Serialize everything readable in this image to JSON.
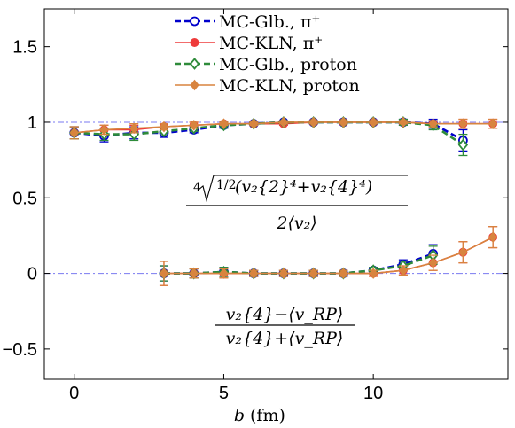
{
  "chart_data": {
    "type": "line",
    "xlabel": "b (fm)",
    "xlabel_var": "b",
    "xlabel_unit": "(fm)",
    "xlim": [
      -1,
      14.5
    ],
    "ylim": [
      -0.7,
      1.75
    ],
    "xticks": [
      0,
      5,
      10
    ],
    "yticks": [
      -0.5,
      0,
      0.5,
      1,
      1.5
    ],
    "xtick_labels": [
      "0",
      "5",
      "10"
    ],
    "ytick_labels": [
      "−0.5",
      "0",
      "0.5",
      "1",
      "1.5"
    ],
    "reference_lines": [
      1,
      0
    ],
    "legend": {
      "placement": "top-center",
      "entries": [
        {
          "label": "MC-Glb., π⁺",
          "color": "#0000cc",
          "marker": "circle-open",
          "dash": "dashed"
        },
        {
          "label": "MC-KLN, π⁺",
          "color": "#ee3b3b",
          "marker": "circle-filled",
          "dash": "solid"
        },
        {
          "label": "MC-Glb., proton",
          "color": "#2e8b3a",
          "marker": "diamond-open",
          "dash": "dashed"
        },
        {
          "label": "MC-KLN, proton",
          "color": "#d8843f",
          "marker": "diamond-filled",
          "dash": "solid"
        }
      ]
    },
    "annotations": {
      "upper": {
        "root": "4",
        "frac": "1/2",
        "body": "(v₂{2}⁴+v₂{4}⁴)",
        "denominator": "2⟨v₂⟩"
      },
      "lower": {
        "numerator": "v₂{4}−⟨v_RP⟩",
        "denominator": "v₂{4}+⟨v_RP⟩"
      }
    },
    "series": [
      {
        "name": "MC-Glb., π⁺",
        "group": "upper",
        "x": [
          0,
          1,
          2,
          3,
          4,
          5,
          6,
          7,
          8,
          9,
          10,
          11,
          12,
          13
        ],
        "y": [
          0.93,
          0.91,
          0.93,
          0.93,
          0.95,
          0.98,
          0.99,
          1.0,
          1.0,
          1.0,
          1.0,
          1.0,
          0.99,
          0.88
        ],
        "err": [
          0.04,
          0.04,
          0.04,
          0.03,
          0.02,
          0.02,
          0.01,
          0.01,
          0.01,
          0.01,
          0.01,
          0.02,
          0.03,
          0.07
        ]
      },
      {
        "name": "MC-KLN, π⁺",
        "group": "upper",
        "x": [
          0,
          1,
          2,
          3,
          4,
          5,
          6,
          7,
          8,
          9,
          10,
          11,
          12,
          13,
          14
        ],
        "y": [
          0.93,
          0.95,
          0.95,
          0.97,
          0.98,
          0.99,
          0.99,
          0.99,
          1.0,
          1.0,
          1.0,
          1.0,
          0.99,
          0.99,
          0.99
        ],
        "err": [
          0.04,
          0.03,
          0.03,
          0.02,
          0.02,
          0.01,
          0.01,
          0.01,
          0.01,
          0.01,
          0.01,
          0.01,
          0.02,
          0.03,
          0.03
        ]
      },
      {
        "name": "MC-Glb., proton",
        "group": "upper",
        "x": [
          0,
          1,
          2,
          3,
          4,
          5,
          6,
          7,
          8,
          9,
          10,
          11,
          12,
          13
        ],
        "y": [
          0.93,
          0.92,
          0.92,
          0.94,
          0.96,
          0.98,
          0.99,
          1.0,
          1.0,
          1.0,
          1.0,
          1.0,
          0.98,
          0.85
        ],
        "err": [
          0.04,
          0.04,
          0.04,
          0.03,
          0.02,
          0.02,
          0.01,
          0.01,
          0.01,
          0.01,
          0.01,
          0.02,
          0.03,
          0.07
        ]
      },
      {
        "name": "MC-KLN, proton",
        "group": "upper",
        "x": [
          0,
          1,
          2,
          3,
          4,
          5,
          6,
          7,
          8,
          9,
          10,
          11,
          12,
          13,
          14
        ],
        "y": [
          0.93,
          0.95,
          0.96,
          0.97,
          0.98,
          0.99,
          0.99,
          1.0,
          1.0,
          1.0,
          1.0,
          1.0,
          0.99,
          0.99,
          0.99
        ],
        "err": [
          0.04,
          0.03,
          0.03,
          0.02,
          0.02,
          0.01,
          0.01,
          0.01,
          0.01,
          0.01,
          0.01,
          0.01,
          0.02,
          0.03,
          0.03
        ]
      },
      {
        "name": "MC-Glb., π⁺",
        "group": "lower",
        "x": [
          3,
          4,
          5,
          6,
          7,
          8,
          9,
          10,
          11,
          12
        ],
        "y": [
          0.0,
          0.0,
          0.01,
          0.0,
          0.0,
          0.0,
          0.0,
          0.02,
          0.06,
          0.13
        ],
        "err": [
          0.05,
          0.03,
          0.03,
          0.02,
          0.02,
          0.02,
          0.02,
          0.02,
          0.03,
          0.06
        ]
      },
      {
        "name": "MC-KLN, π⁺",
        "group": "lower",
        "x": [
          3,
          4,
          5,
          6,
          7,
          8,
          9,
          10,
          11,
          12,
          13,
          14
        ],
        "y": [
          0.0,
          0.0,
          0.0,
          0.0,
          0.0,
          0.0,
          0.0,
          0.0,
          0.02,
          0.07,
          0.14,
          0.24
        ],
        "err": [
          0.08,
          0.03,
          0.03,
          0.02,
          0.02,
          0.02,
          0.02,
          0.02,
          0.03,
          0.05,
          0.07,
          0.07
        ]
      },
      {
        "name": "MC-Glb., proton",
        "group": "lower",
        "x": [
          3,
          4,
          5,
          6,
          7,
          8,
          9,
          10,
          11,
          12
        ],
        "y": [
          0.0,
          0.0,
          0.01,
          0.0,
          0.0,
          0.0,
          0.0,
          0.02,
          0.05,
          0.12
        ],
        "err": [
          0.05,
          0.03,
          0.03,
          0.02,
          0.02,
          0.02,
          0.02,
          0.02,
          0.03,
          0.06
        ]
      },
      {
        "name": "MC-KLN, proton",
        "group": "lower",
        "x": [
          3,
          4,
          5,
          6,
          7,
          8,
          9,
          10,
          11,
          12,
          13,
          14
        ],
        "y": [
          0.0,
          0.0,
          0.0,
          0.0,
          0.0,
          0.0,
          0.0,
          0.0,
          0.02,
          0.07,
          0.14,
          0.24
        ],
        "err": [
          0.08,
          0.03,
          0.03,
          0.02,
          0.02,
          0.02,
          0.02,
          0.02,
          0.03,
          0.05,
          0.07,
          0.07
        ]
      }
    ]
  }
}
